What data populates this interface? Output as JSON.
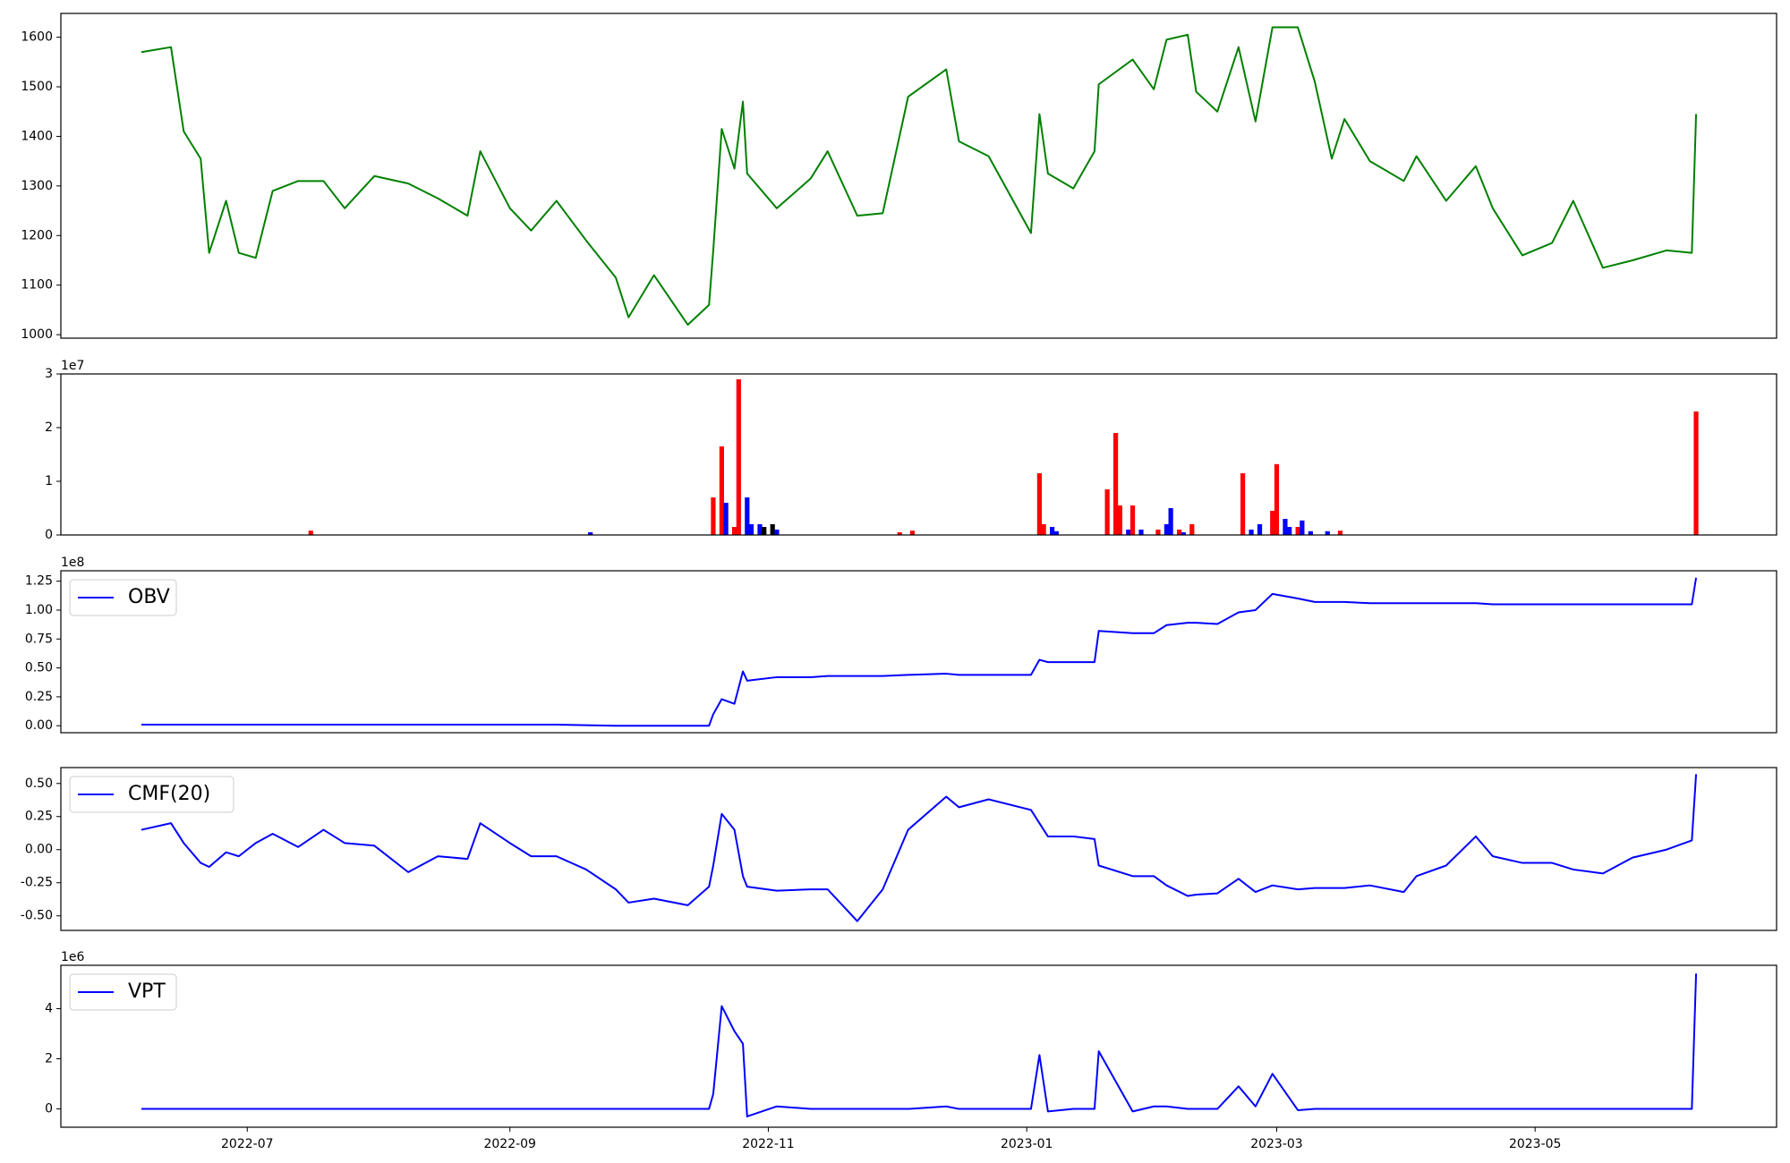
{
  "chart_data": [
    {
      "type": "line",
      "xlim": [
        19130,
        19535
      ],
      "ylim": [
        993,
        1648
      ],
      "yticks": [
        1000,
        1100,
        1200,
        1300,
        1400,
        1500,
        1600
      ],
      "x": [
        19149,
        19156,
        19159,
        19163,
        19165,
        19169,
        19172,
        19176,
        19180,
        19186,
        19192,
        19197,
        19204,
        19212,
        19219,
        19226,
        19229,
        19236,
        19241,
        19247,
        19254,
        19261,
        19264,
        19270,
        19278,
        19283,
        19284,
        19286,
        19289,
        19291,
        19292,
        19299,
        19307,
        19311,
        19318,
        19324,
        19330,
        19339,
        19342,
        19349,
        19359,
        19361,
        19363,
        19369,
        19374,
        19375,
        19383,
        19388,
        19391,
        19396,
        19398,
        19403,
        19408,
        19412,
        19416,
        19422,
        19426,
        19430,
        19433,
        19439,
        19447,
        19450,
        19457,
        19464,
        19468,
        19475,
        19482,
        19487,
        19494,
        19501,
        19509,
        19515,
        19516
      ],
      "series": [
        {
          "color": "#008000",
          "values": [
            1570,
            1580,
            1410,
            1355,
            1165,
            1270,
            1165,
            1155,
            1290,
            1310,
            1310,
            1255,
            1320,
            1305,
            1275,
            1240,
            1370,
            1255,
            1210,
            1270,
            1190,
            1115,
            1035,
            1120,
            1020,
            1060,
            1170,
            1415,
            1335,
            1470,
            1325,
            1255,
            1315,
            1370,
            1240,
            1245,
            1480,
            1535,
            1390,
            1360,
            1205,
            1445,
            1325,
            1295,
            1370,
            1505,
            1555,
            1495,
            1595,
            1605,
            1490,
            1450,
            1580,
            1430,
            1620,
            1620,
            1510,
            1355,
            1435,
            1350,
            1310,
            1360,
            1270,
            1340,
            1255,
            1160,
            1185,
            1270,
            1135,
            1150,
            1170,
            1165,
            1445
          ]
        }
      ]
    },
    {
      "type": "bar",
      "xlim": [
        19130,
        19535
      ],
      "ylim": [
        0,
        3
      ],
      "yticks": [
        0,
        1,
        2,
        3
      ],
      "y_offset_label": "1e7",
      "x": [
        19189,
        19255,
        19284,
        19286,
        19287,
        19289,
        19290,
        19292,
        19293,
        19295,
        19296,
        19298,
        19299,
        19328,
        19331,
        19361,
        19362,
        19364,
        19365,
        19377,
        19379,
        19380,
        19382,
        19383,
        19385,
        19389,
        19391,
        19392,
        19394,
        19395,
        19397,
        19409,
        19411,
        19413,
        19416,
        19417,
        19419,
        19420,
        19422,
        19423,
        19425,
        19429,
        19432,
        19516
      ],
      "values": [
        0.08,
        0.05,
        0.7,
        1.65,
        0.6,
        0.15,
        2.9,
        0.7,
        0.2,
        0.2,
        0.15,
        0.2,
        0.1,
        0.05,
        0.08,
        1.15,
        0.2,
        0.15,
        0.07,
        0.85,
        1.9,
        0.55,
        0.1,
        0.55,
        0.1,
        0.1,
        0.2,
        0.5,
        0.1,
        0.05,
        0.2,
        1.15,
        0.1,
        0.2,
        0.45,
        1.32,
        0.3,
        0.15,
        0.15,
        0.27,
        0.07,
        0.07,
        0.08,
        2.3
      ],
      "colors": [
        "red",
        "blue",
        "red",
        "red",
        "blue",
        "red",
        "red",
        "blue",
        "blue",
        "blue",
        "black",
        "black",
        "blue",
        "red",
        "red",
        "red",
        "red",
        "blue",
        "blue",
        "red",
        "red",
        "red",
        "blue",
        "red",
        "blue",
        "red",
        "blue",
        "blue",
        "red",
        "blue",
        "red",
        "red",
        "blue",
        "blue",
        "red",
        "red",
        "blue",
        "blue",
        "red",
        "blue",
        "blue",
        "blue",
        "red",
        "red"
      ]
    },
    {
      "type": "line",
      "xlim": [
        19130,
        19535
      ],
      "ylim": [
        -0.06,
        1.34
      ],
      "y_offset_label": "1e8",
      "legend": "upper left",
      "yticks": [
        {
          "value": 0,
          "label": "0.00"
        },
        {
          "value": 0.25,
          "label": "0.25"
        },
        {
          "value": 0.5,
          "label": "0.50"
        },
        {
          "value": 0.75,
          "label": "0.75"
        },
        {
          "value": 1,
          "label": "1.00"
        },
        {
          "value": 1.25,
          "label": "1.25"
        }
      ],
      "x": [
        19149,
        19156,
        19159,
        19163,
        19165,
        19169,
        19172,
        19176,
        19180,
        19186,
        19192,
        19197,
        19204,
        19212,
        19219,
        19226,
        19229,
        19236,
        19241,
        19247,
        19254,
        19261,
        19264,
        19270,
        19278,
        19283,
        19284,
        19286,
        19289,
        19291,
        19292,
        19299,
        19307,
        19311,
        19318,
        19324,
        19330,
        19339,
        19342,
        19349,
        19359,
        19361,
        19363,
        19369,
        19374,
        19375,
        19383,
        19388,
        19391,
        19396,
        19398,
        19403,
        19408,
        19412,
        19416,
        19422,
        19426,
        19430,
        19433,
        19439,
        19447,
        19450,
        19457,
        19464,
        19468,
        19475,
        19482,
        19487,
        19494,
        19501,
        19509,
        19515,
        19516
      ],
      "series": [
        {
          "name": "OBV",
          "color": "#0000ff",
          "values": [
            0.01,
            0.01,
            0.01,
            0.01,
            0.01,
            0.01,
            0.01,
            0.01,
            0.01,
            0.01,
            0.01,
            0.01,
            0.01,
            0.01,
            0.01,
            0.01,
            0.01,
            0.01,
            0.01,
            0.01,
            0.005,
            0,
            0,
            0,
            0,
            0,
            0.1,
            0.23,
            0.19,
            0.47,
            0.39,
            0.42,
            0.42,
            0.43,
            0.43,
            0.43,
            0.44,
            0.45,
            0.44,
            0.44,
            0.44,
            0.57,
            0.55,
            0.55,
            0.55,
            0.82,
            0.8,
            0.8,
            0.87,
            0.89,
            0.89,
            0.88,
            0.98,
            1.0,
            1.14,
            1.1,
            1.07,
            1.07,
            1.07,
            1.06,
            1.06,
            1.06,
            1.06,
            1.06,
            1.05,
            1.05,
            1.05,
            1.05,
            1.05,
            1.05,
            1.05,
            1.05,
            1.28
          ]
        }
      ]
    },
    {
      "type": "line",
      "xlim": [
        19130,
        19535
      ],
      "ylim": [
        -0.61,
        0.62
      ],
      "legend": "upper left",
      "yticks": [
        {
          "value": -0.5,
          "label": "-0.50"
        },
        {
          "value": -0.25,
          "label": "-0.25"
        },
        {
          "value": 0,
          "label": "0.00"
        },
        {
          "value": 0.25,
          "label": "0.25"
        },
        {
          "value": 0.5,
          "label": "0.50"
        }
      ],
      "x": [
        19149,
        19156,
        19159,
        19163,
        19165,
        19169,
        19172,
        19176,
        19180,
        19186,
        19192,
        19197,
        19204,
        19212,
        19219,
        19226,
        19229,
        19236,
        19241,
        19247,
        19254,
        19261,
        19264,
        19270,
        19278,
        19283,
        19284,
        19286,
        19289,
        19291,
        19292,
        19299,
        19307,
        19311,
        19318,
        19324,
        19330,
        19339,
        19342,
        19349,
        19359,
        19361,
        19363,
        19369,
        19374,
        19375,
        19383,
        19388,
        19391,
        19396,
        19398,
        19403,
        19408,
        19412,
        19416,
        19422,
        19426,
        19430,
        19433,
        19439,
        19447,
        19450,
        19457,
        19464,
        19468,
        19475,
        19482,
        19487,
        19494,
        19501,
        19509,
        19515,
        19516
      ],
      "series": [
        {
          "name": "CMF(20)",
          "color": "#0000ff",
          "values": [
            0.15,
            0.2,
            0.05,
            -0.1,
            -0.13,
            -0.02,
            -0.05,
            0.05,
            0.12,
            0.02,
            0.15,
            0.05,
            0.03,
            -0.17,
            -0.05,
            -0.07,
            0.2,
            0.05,
            -0.05,
            -0.05,
            -0.15,
            -0.3,
            -0.4,
            -0.37,
            -0.42,
            -0.28,
            -0.12,
            0.27,
            0.15,
            -0.2,
            -0.28,
            -0.31,
            -0.3,
            -0.3,
            -0.54,
            -0.3,
            0.15,
            0.4,
            0.32,
            0.38,
            0.3,
            0.2,
            0.1,
            0.1,
            0.08,
            -0.12,
            -0.2,
            -0.2,
            -0.27,
            -0.35,
            -0.34,
            -0.33,
            -0.22,
            -0.32,
            -0.27,
            -0.3,
            -0.29,
            -0.29,
            -0.29,
            -0.27,
            -0.32,
            -0.2,
            -0.12,
            0.1,
            -0.05,
            -0.1,
            -0.1,
            -0.15,
            -0.18,
            -0.06,
            0.0,
            0.07,
            0.57
          ]
        }
      ]
    },
    {
      "type": "line",
      "xlim": [
        19130,
        19535
      ],
      "ylim": [
        -0.73,
        5.73
      ],
      "yticks": [
        0,
        2,
        4
      ],
      "y_offset_label": "1e6",
      "legend": "upper left",
      "xticks": [
        {
          "value": 19174,
          "label": "2022-07"
        },
        {
          "value": 19236,
          "label": "2022-09"
        },
        {
          "value": 19297,
          "label": "2022-11"
        },
        {
          "value": 19358,
          "label": "2023-01"
        },
        {
          "value": 19417,
          "label": "2023-03"
        },
        {
          "value": 19478,
          "label": "2023-05"
        }
      ],
      "x": [
        19149,
        19156,
        19159,
        19163,
        19165,
        19169,
        19172,
        19176,
        19180,
        19186,
        19192,
        19197,
        19204,
        19212,
        19219,
        19226,
        19229,
        19236,
        19241,
        19247,
        19254,
        19261,
        19264,
        19270,
        19278,
        19283,
        19284,
        19286,
        19289,
        19291,
        19292,
        19299,
        19307,
        19311,
        19318,
        19324,
        19330,
        19339,
        19342,
        19349,
        19359,
        19361,
        19363,
        19369,
        19374,
        19375,
        19383,
        19388,
        19391,
        19396,
        19398,
        19403,
        19408,
        19412,
        19416,
        19422,
        19426,
        19430,
        19433,
        19439,
        19447,
        19450,
        19457,
        19464,
        19468,
        19475,
        19482,
        19487,
        19494,
        19501,
        19509,
        19515,
        19516
      ],
      "series": [
        {
          "name": "VPT",
          "color": "#0000ff",
          "values": [
            0,
            0,
            0,
            0,
            0,
            0,
            0,
            0,
            0,
            0,
            0,
            0,
            0,
            0,
            0,
            0,
            0,
            0,
            0,
            0,
            0,
            0,
            0,
            0,
            0,
            0,
            0.6,
            4.1,
            3.1,
            2.6,
            -0.3,
            0.1,
            0,
            0,
            0,
            0,
            0,
            0.1,
            0,
            0,
            0,
            2.15,
            -0.1,
            0,
            0,
            2.3,
            -0.1,
            0.1,
            0.1,
            0,
            0,
            0,
            0.9,
            0.1,
            1.4,
            -0.05,
            0,
            0,
            0,
            0,
            0,
            0,
            0,
            0,
            0,
            0,
            0,
            0,
            0,
            0,
            0,
            0,
            5.4
          ]
        }
      ]
    }
  ]
}
